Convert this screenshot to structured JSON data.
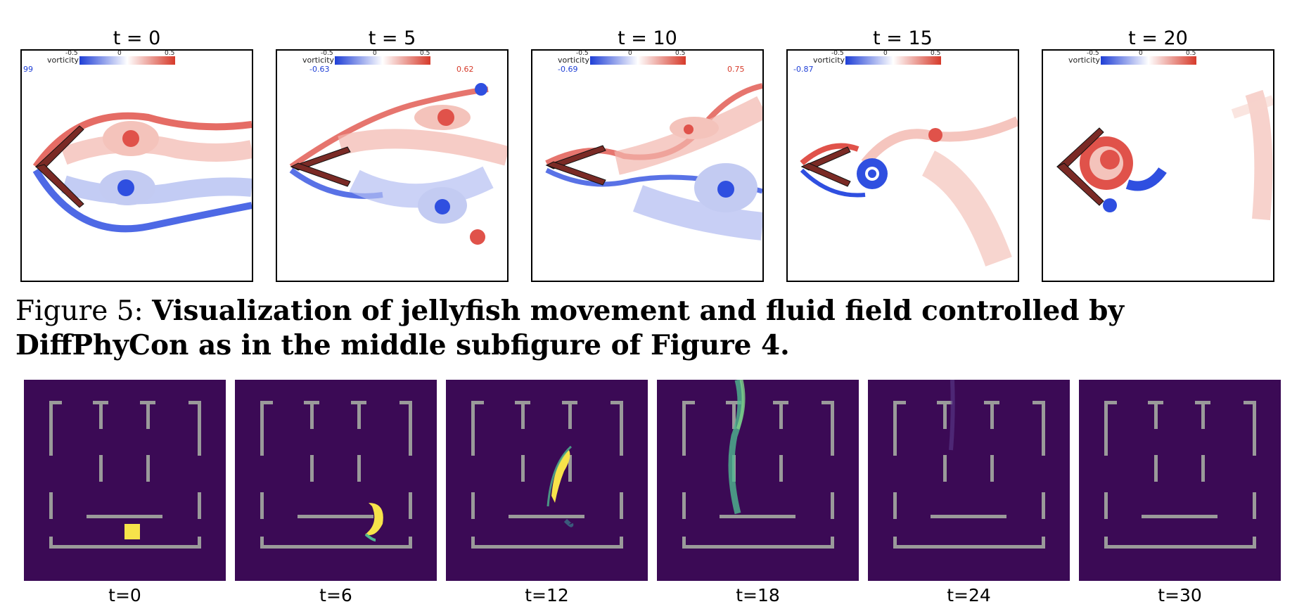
{
  "top_row": {
    "colorbar_label": "vorticity",
    "colorbar_ticks": [
      "-0.5",
      "0",
      "0.5"
    ],
    "colors": {
      "negative": "#1f3fd6",
      "positive": "#d63a2a",
      "body": "#7a2a25"
    },
    "panels": [
      {
        "title": "t = 0",
        "vmin": "99",
        "vmax": ""
      },
      {
        "title": "t = 5",
        "vmin": "-0.63",
        "vmax": "0.62"
      },
      {
        "title": "t = 10",
        "vmin": "-0.69",
        "vmax": "0.75"
      },
      {
        "title": "t = 15",
        "vmin": "-0.87",
        "vmax": ""
      },
      {
        "title": "t = 20",
        "vmin": "",
        "vmax": ""
      }
    ]
  },
  "caption": {
    "prefix": "Figure 5: ",
    "text": "Visualization of jellyfish movement and fluid field controlled by DiffPhyCon as in the middle subfigure of Figure 4."
  },
  "bottom_row": {
    "colors": {
      "background": "#3b0a55",
      "wall": "#9a9a9a",
      "plume": "#f7e34a"
    },
    "panels": [
      {
        "label": "t=0"
      },
      {
        "label": "t=6"
      },
      {
        "label": "t=12"
      },
      {
        "label": "t=18"
      },
      {
        "label": "t=24"
      },
      {
        "label": "t=30"
      }
    ]
  }
}
